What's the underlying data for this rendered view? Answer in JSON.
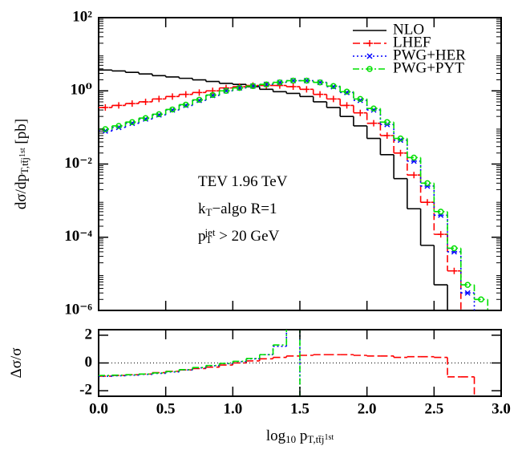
{
  "chart_data": [
    {
      "type": "histogram",
      "bins": [
        0,
        0.1,
        0.2,
        0.3,
        0.4,
        0.5,
        0.6,
        0.7,
        0.8,
        0.9,
        1,
        1.1,
        1.2,
        1.3,
        1.4,
        1.5,
        1.6,
        1.7,
        1.8,
        1.9,
        2,
        2.1,
        2.2,
        2.3,
        2.4,
        2.5,
        2.6,
        2.7,
        2.8,
        2.9
      ],
      "xlim": [
        0,
        3
      ],
      "ylim": [
        1e-06,
        100
      ],
      "ylog": true,
      "yticks": [
        {
          "value": 1e-06,
          "label": "10⁻⁶"
        },
        {
          "value": 0.0001,
          "label": "10⁻⁴"
        },
        {
          "value": 0.01,
          "label": "10⁻²"
        },
        {
          "value": 1,
          "label": "10⁰"
        },
        {
          "value": 100,
          "label": "10²"
        }
      ],
      "ylabel": [
        {
          "t": "dσ/dp"
        },
        {
          "t": "T,tt̄j",
          "shift": "sub"
        },
        {
          "t": "1st",
          "shift": "subsup"
        },
        {
          "t": " [pb]"
        }
      ],
      "legend": "upper right",
      "annotations": [
        [
          {
            "t": "TEV 1.96 TeV"
          }
        ],
        [
          {
            "t": "k"
          },
          {
            "t": "T",
            "shift": "sub"
          },
          {
            "t": "−algo R=1"
          }
        ],
        [
          {
            "t": "p"
          },
          {
            "t": "T",
            "shift": "sub"
          },
          {
            "t": "jet",
            "shift": "sup"
          },
          {
            "t": " > 20 GeV"
          }
        ]
      ],
      "series": [
        {
          "name": "NLO",
          "color": "#000000",
          "dash": "solid",
          "marker": "none",
          "values": [
            3.7,
            3.5,
            3.2,
            2.9,
            2.6,
            2.4,
            2.2,
            2.0,
            1.8,
            1.6,
            1.5,
            1.3,
            1.1,
            0.95,
            0.85,
            0.7,
            0.5,
            0.35,
            0.2,
            0.11,
            0.05,
            0.018,
            0.004,
            0.0006,
            6e-05,
            5e-06,
            null,
            null,
            null
          ]
        },
        {
          "name": "LHEF",
          "color": "#ff0000",
          "dash": "dashed",
          "marker": "plus",
          "values": [
            0.35,
            0.4,
            0.45,
            0.5,
            0.6,
            0.7,
            0.8,
            0.9,
            1.0,
            1.2,
            1.3,
            1.4,
            1.4,
            1.4,
            1.3,
            1.1,
            0.8,
            0.6,
            0.4,
            0.25,
            0.13,
            0.06,
            0.02,
            0.005,
            0.0009,
            0.00012,
            1.2e-05,
            null,
            null
          ]
        },
        {
          "name": "PWG+HER",
          "color": "#0000ff",
          "dash": "dotted",
          "marker": "x",
          "values": [
            0.08,
            0.1,
            0.13,
            0.17,
            0.22,
            0.3,
            0.4,
            0.55,
            0.75,
            1.0,
            1.2,
            1.35,
            1.5,
            1.7,
            1.9,
            1.9,
            1.7,
            1.3,
            0.9,
            0.55,
            0.3,
            0.12,
            0.045,
            0.012,
            0.0025,
            0.0004,
            4e-05,
            3e-06,
            null
          ]
        },
        {
          "name": "PWG+PYT",
          "color": "#00e000",
          "dash": "dashdot",
          "marker": "circle",
          "values": [
            0.09,
            0.11,
            0.14,
            0.18,
            0.23,
            0.31,
            0.42,
            0.57,
            0.77,
            1.0,
            1.2,
            1.35,
            1.5,
            1.7,
            1.9,
            1.9,
            1.7,
            1.35,
            0.95,
            0.6,
            0.33,
            0.14,
            0.05,
            0.015,
            0.003,
            0.0005,
            5e-05,
            5e-06,
            2e-06
          ]
        }
      ]
    },
    {
      "type": "histogram",
      "bins": [
        0,
        0.1,
        0.2,
        0.3,
        0.4,
        0.5,
        0.6,
        0.7,
        0.8,
        0.9,
        1,
        1.1,
        1.2,
        1.3,
        1.4,
        1.5,
        1.6,
        1.7,
        1.8,
        1.9,
        2,
        2.1,
        2.2,
        2.3,
        2.4,
        2.5,
        2.6,
        2.7,
        2.8,
        2.9
      ],
      "xlim": [
        0,
        3
      ],
      "xticks": [
        {
          "value": 0,
          "label": "0.0"
        },
        0.5,
        {
          "value": 1,
          "label": "1.0"
        },
        1.5,
        {
          "value": 2,
          "label": "2.0"
        },
        2.5,
        {
          "value": 3,
          "label": "3.0"
        }
      ],
      "ylim": [
        -2.4,
        2.4
      ],
      "yticks": [
        -2,
        0,
        2
      ],
      "ylabel": [
        {
          "t": "Δσ/σ"
        }
      ],
      "xlabel": [
        {
          "t": "log"
        },
        {
          "t": "10",
          "shift": "sub"
        },
        {
          "t": " p"
        },
        {
          "t": "T,tt̄j",
          "shift": "sub"
        },
        {
          "t": "1st",
          "shift": "subsup"
        }
      ],
      "series": [
        {
          "color": "#ff0000",
          "dash": "dashed",
          "values": [
            -0.95,
            -0.9,
            -0.85,
            -0.8,
            -0.7,
            -0.6,
            -0.5,
            -0.4,
            -0.3,
            -0.15,
            0,
            0.15,
            0.3,
            0.4,
            0.5,
            0.55,
            0.6,
            0.6,
            0.6,
            0.55,
            0.5,
            0.5,
            0.4,
            0.45,
            0.45,
            0.4,
            -1,
            -1,
            null
          ]
        },
        {
          "color": "#0000ff",
          "dash": "dotted",
          "values": [
            -0.95,
            -0.92,
            -0.88,
            -0.82,
            -0.75,
            -0.65,
            -0.5,
            -0.35,
            -0.2,
            -0.05,
            0.1,
            0.3,
            0.6,
            1.2,
            2.6,
            null,
            null,
            null,
            null,
            null,
            null,
            null,
            null,
            null,
            null,
            null,
            null,
            null,
            null
          ]
        },
        {
          "color": "#00e000",
          "dash": "dashdot",
          "values": [
            -0.9,
            -0.88,
            -0.85,
            -0.8,
            -0.72,
            -0.62,
            -0.48,
            -0.33,
            -0.18,
            -0.03,
            0.12,
            0.32,
            0.6,
            1.3,
            2.6,
            null,
            null,
            null,
            null,
            null,
            null,
            null,
            null,
            null,
            null,
            null,
            null,
            null,
            null
          ]
        }
      ]
    }
  ]
}
